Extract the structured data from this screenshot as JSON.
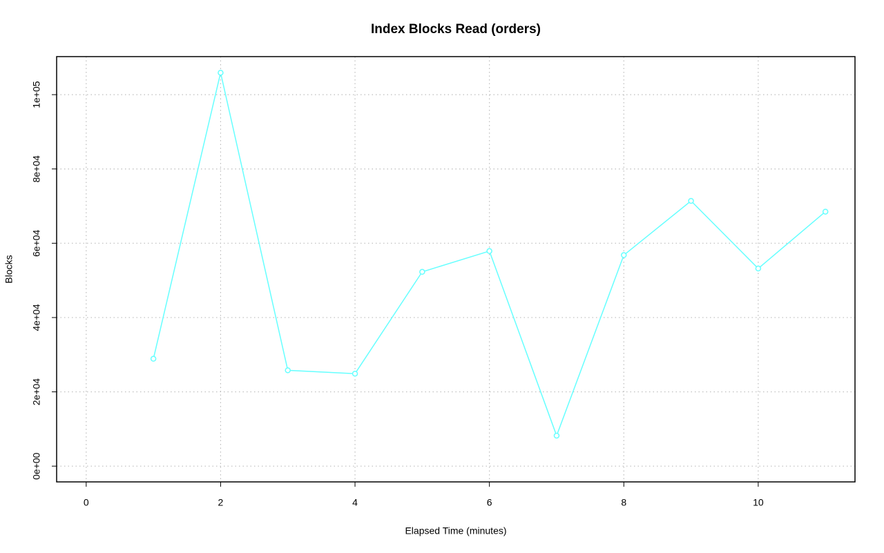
{
  "chart_data": {
    "type": "line",
    "title": "Index Blocks Read (orders)",
    "x_label": "Elapsed Time (minutes)",
    "y_label": "Blocks",
    "x": [
      1,
      2,
      3,
      4,
      5,
      6,
      7,
      8,
      9,
      10,
      11
    ],
    "series": [
      {
        "name": "Blocks",
        "color": "#66ffff",
        "values": [
          28900,
          105900,
          25800,
          24900,
          52300,
          57900,
          8200,
          56800,
          71400,
          53200,
          68500
        ]
      }
    ],
    "xlim": [
      -0.44,
      11.44
    ],
    "xticks": [
      0,
      2,
      4,
      6,
      8,
      10
    ],
    "ylim": [
      -4240,
      110240
    ],
    "yticks": [
      {
        "value": 0,
        "label": "0e+00"
      },
      {
        "value": 20000,
        "label": "2e+04"
      },
      {
        "value": 40000,
        "label": "4e+04"
      },
      {
        "value": 60000,
        "label": "6e+04"
      },
      {
        "value": 80000,
        "label": "8e+04"
      },
      {
        "value": 100000,
        "label": "1e+05"
      }
    ],
    "grid": true
  }
}
